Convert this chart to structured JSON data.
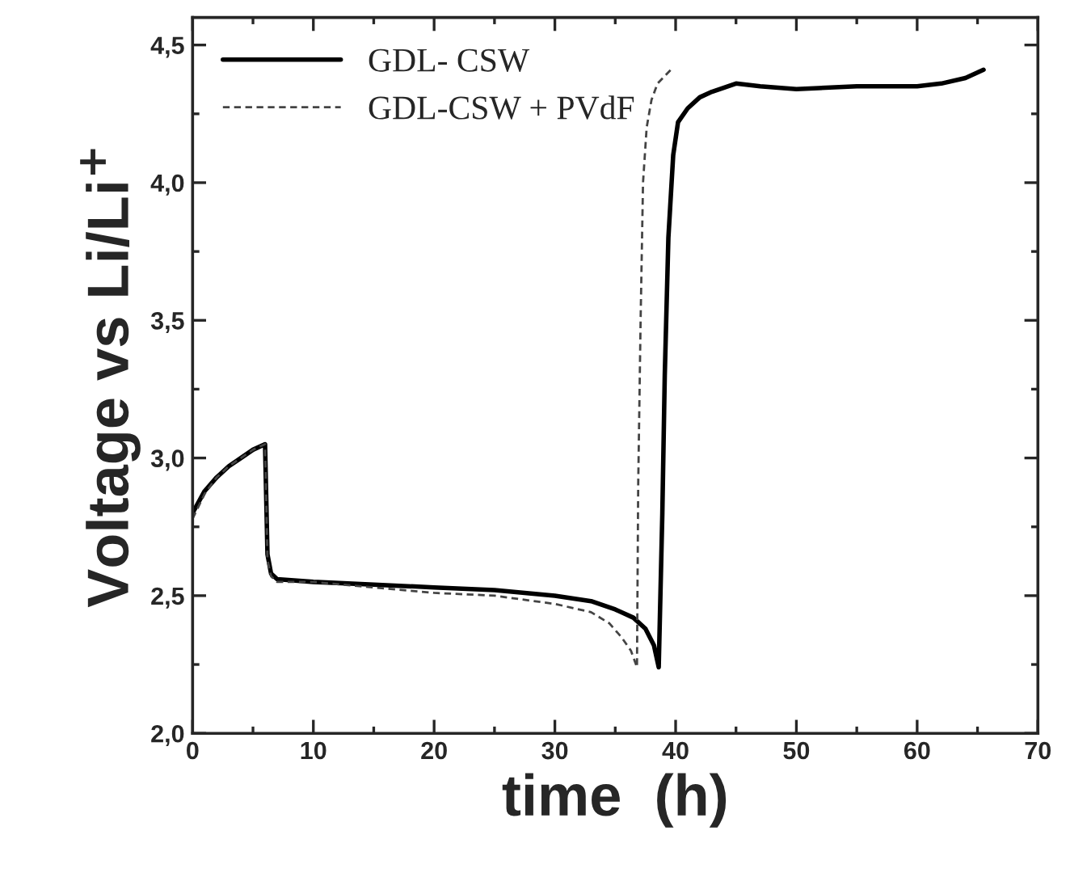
{
  "chart_data": {
    "type": "line",
    "xlabel": "time  (h)",
    "ylabel": "Voltage vs Li/Li$^{+}$",
    "xlim": [
      0,
      70
    ],
    "xticks": [
      0,
      10,
      20,
      30,
      40,
      50,
      60,
      70
    ],
    "ylim": [
      2.0,
      4.6
    ],
    "yticks": [
      {
        "value": 2.0,
        "label": "2,0"
      },
      {
        "value": 2.5,
        "label": "2,5"
      },
      {
        "value": 3.0,
        "label": "3,0"
      },
      {
        "value": 3.5,
        "label": "3,5"
      },
      {
        "value": 4.0,
        "label": "4,0"
      },
      {
        "value": 4.5,
        "label": "4,5"
      }
    ],
    "legend": "top left",
    "grid": false,
    "series": [
      {
        "name": "GDL- CSW",
        "color": "#000000",
        "line_style": "solid",
        "x": [
          0,
          1,
          2,
          3,
          4,
          5,
          6,
          6.2,
          6.5,
          7,
          10,
          15,
          20,
          25,
          30,
          33,
          35,
          36.5,
          37.5,
          38.2,
          38.6,
          38.9,
          39.1,
          39.4,
          39.8,
          40.2,
          41,
          42,
          43,
          45,
          47,
          50,
          55,
          60,
          62,
          64,
          65.5
        ],
        "values": [
          2.8,
          2.88,
          2.93,
          2.97,
          3.0,
          3.03,
          3.05,
          2.65,
          2.58,
          2.56,
          2.55,
          2.54,
          2.53,
          2.52,
          2.5,
          2.48,
          2.45,
          2.42,
          2.38,
          2.32,
          2.24,
          2.8,
          3.3,
          3.8,
          4.1,
          4.22,
          4.27,
          4.31,
          4.33,
          4.36,
          4.35,
          4.34,
          4.35,
          4.35,
          4.36,
          4.38,
          4.41
        ]
      },
      {
        "name": "GDL-CSW + PVdF",
        "color": "#444444",
        "line_style": "dashed",
        "x": [
          0,
          1,
          2,
          3,
          4,
          5,
          6,
          6.2,
          6.5,
          7,
          10,
          15,
          20,
          25,
          30,
          33,
          34.5,
          35.5,
          36.3,
          36.8,
          36.9,
          37.1,
          37.3,
          37.6,
          38,
          38.5,
          39.6
        ],
        "values": [
          2.78,
          2.87,
          2.93,
          2.97,
          3.0,
          3.03,
          3.05,
          2.63,
          2.57,
          2.55,
          2.55,
          2.53,
          2.51,
          2.5,
          2.47,
          2.44,
          2.4,
          2.35,
          2.3,
          2.24,
          2.9,
          3.5,
          4.0,
          4.2,
          4.3,
          4.36,
          4.41
        ]
      }
    ]
  }
}
